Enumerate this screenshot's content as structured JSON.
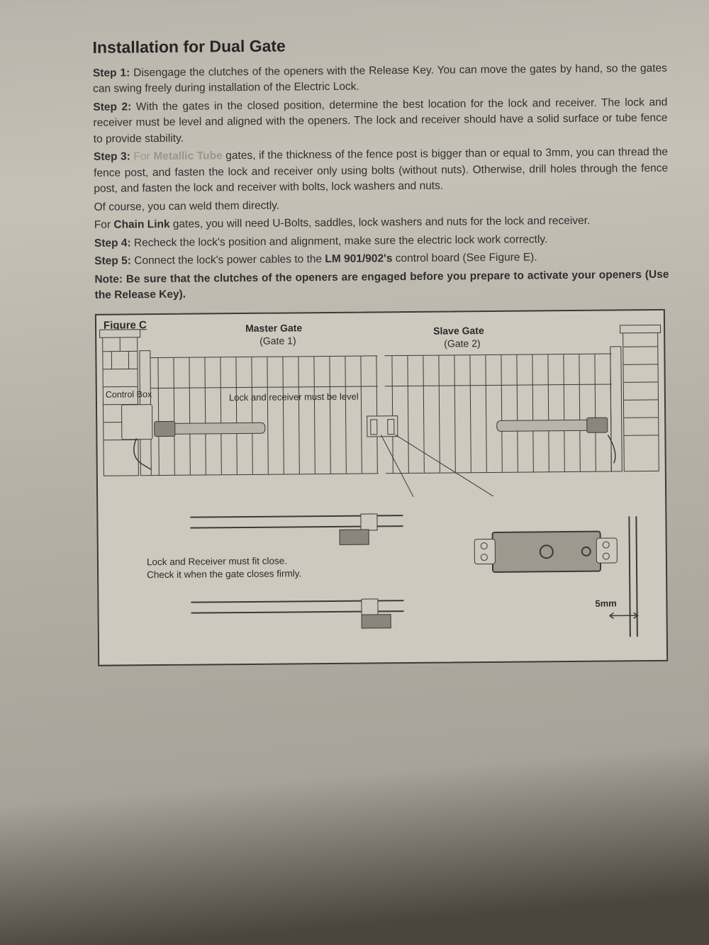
{
  "title": "Installation for Dual Gate",
  "steps": {
    "s1_label": "Step 1:",
    "s1_text": " Disengage the clutches of the openers with the Release Key. You can move the gates by hand, so the gates can swing freely during installation of the Electric Lock.",
    "s2_label": "Step 2:",
    "s2_text": " With the gates in the closed position, determine the best location for the lock and receiver. The lock and receiver must be level and aligned with the openers. The lock and receiver should have a solid surface or tube fence to provide stability.",
    "s3_label": "Step 3:",
    "s3_a": " For ",
    "s3_metallic": "Metallic Tube",
    "s3_b": " gates, if the thickness of the fence post is bigger than or equal to 3mm, you can thread the fence post, and fasten the lock and receiver only using bolts (without nuts). Otherwise, drill holes through the fence post, and fasten the lock and receiver with bolts, lock washers and nuts.",
    "s3_c": "Of course, you can weld them directly.",
    "s3_d_a": "For ",
    "s3_chainlink": "Chain Link",
    "s3_d_b": " gates, you will need U-Bolts, saddles, lock washers and nuts for the lock and receiver.",
    "s4_label": "Step 4:",
    "s4_text": " Recheck the lock's position and alignment, make sure the electric lock work correctly.",
    "s5_label": "Step 5:",
    "s5_a": " Connect the lock's power cables to the ",
    "s5_model": "LM 901/902's",
    "s5_b": " control board (See Figure E).",
    "note_label": "Note:",
    "note_text": " Be sure that the clutches of the openers are engaged before you prepare to activate your openers (Use the Release Key)."
  },
  "figure": {
    "label": "Figure C",
    "master_gate": "Master Gate",
    "master_sub": "(Gate 1)",
    "slave_gate": "Slave Gate",
    "slave_sub": "(Gate 2)",
    "control_box": "Control Box",
    "level_note": "Lock and receiver must be level",
    "fitclose_l1": "Lock and Receiver must fit close.",
    "fitclose_l2": "Check it when the gate closes firmly.",
    "dim": "5mm"
  },
  "colors": {
    "line": "#3a3a3a",
    "paper": "#cdc9be",
    "ink": "#2a2a2a"
  }
}
